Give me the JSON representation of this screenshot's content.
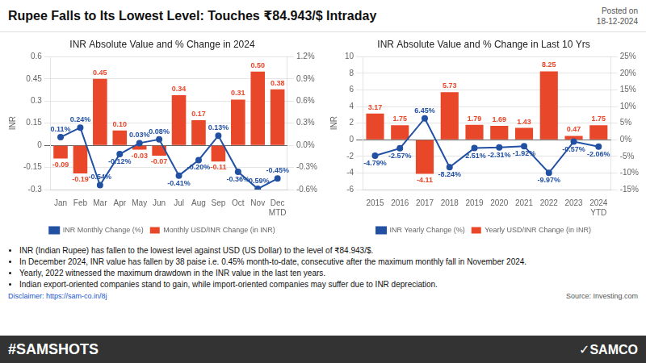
{
  "title": "Rupee Falls to Its Lowest Level: Touches ₹84.943/$ Intraday",
  "subtitle": "Posted on\n18-12-2024",
  "annotations": [
    "INR (Indian Rupee) has fallen to the lowest level against USD (US Dollar) to the level of ₹84.943/$.",
    "In December 2024, INR value has fallen by 38 paise i.e. 0.45% month-to-date, consecutive after the maximum monthly fall in November 2024.",
    "Yearly, 2022 witnessed the maximum drawdown in the INR value in the last ten years.",
    "Indian export-oriented companies stand to gain, while import-oriented companies may suffer due to INR depreciation.",
    "Disclaimer: https://sam-co.in/8j",
    "Source: Investing.com",
    "#SAMSHOTS",
    "✓SAMCO"
  ],
  "chart_data": [
    {
      "type": "bar",
      "title": "INR Absolute Value and % Change in 2024",
      "categories": [
        "Jan",
        "Feb",
        "Mar",
        "Apr",
        "May",
        "Jun",
        "Jul",
        "Aug",
        "Sep",
        "Oct",
        "Nov",
        "Dec\nMTD"
      ],
      "ylabel": "INR",
      "ylim": [
        -0.3,
        0.6
      ],
      "yticks": [
        -0.3,
        -0.15,
        0,
        0.15,
        0.3,
        0.45,
        0.6
      ],
      "y2lim": [
        -0.6,
        1.2
      ],
      "y2ticks": [
        {
          "value": -0.6,
          "label": "-0.6%"
        },
        {
          "value": -0.3,
          "label": "-0.3%"
        },
        {
          "value": 0,
          "label": "0.0%"
        },
        {
          "value": 0.3,
          "label": "0.3%"
        },
        {
          "value": 0.6,
          "label": "0.6%"
        },
        {
          "value": 0.9,
          "label": "0.9%"
        },
        {
          "value": 1.2,
          "label": "1.2%"
        }
      ],
      "grid": true,
      "legend": "bottom",
      "data_labels": true,
      "series": [
        {
          "name": "Monthly USD/INR Change (in INR)",
          "type": "bar",
          "color": "#E8472A",
          "values": [
            -0.09,
            -0.19,
            0.45,
            0.1,
            -0.03,
            -0.07,
            0.34,
            0.17,
            -0.11,
            0.31,
            0.5,
            0.38
          ],
          "value_labels": [
            "-0.09",
            "-0.19",
            "0.45",
            "0.10",
            "-0.03",
            "-0.07",
            "0.34",
            "0.17",
            "-0.11",
            "0.31",
            "0.50",
            "0.38"
          ]
        },
        {
          "name": "INR Monthly Change (%)",
          "type": "line",
          "axis": "y2",
          "color": "#2251A3",
          "marker": "circle",
          "values": [
            0.11,
            0.24,
            -0.54,
            -0.12,
            0.03,
            0.08,
            -0.41,
            -0.2,
            0.13,
            -0.36,
            -0.59,
            -0.45
          ],
          "value_labels": [
            "0.11%",
            "0.24%",
            "-0.54%",
            "-0.12%",
            "0.03%",
            "0.08%",
            "-0.41%",
            "-0.20%",
            "0.13%",
            "-0.36%",
            "-0.59%",
            "-0.45%"
          ]
        }
      ]
    },
    {
      "type": "bar",
      "title": "INR Absolute Value and % Change in Last 10 Yrs",
      "categories": [
        "2015",
        "2016",
        "2017",
        "2018",
        "2019",
        "2020",
        "2021",
        "2022",
        "2023",
        "2024\nYTD"
      ],
      "ylabel": "INR",
      "ylim": [
        -6,
        10
      ],
      "yticks": [
        -6,
        -4,
        -2,
        0,
        2,
        4,
        6,
        8,
        10
      ],
      "y2lim": [
        -15,
        25
      ],
      "y2ticks": [
        {
          "value": -15,
          "label": "-15%"
        },
        {
          "value": -10,
          "label": "-10%"
        },
        {
          "value": -5,
          "label": "-5%"
        },
        {
          "value": 0,
          "label": "0%"
        },
        {
          "value": 5,
          "label": "5%"
        },
        {
          "value": 10,
          "label": "10%"
        },
        {
          "value": 15,
          "label": "15%"
        },
        {
          "value": 20,
          "label": "20%"
        },
        {
          "value": 25,
          "label": "25%"
        }
      ],
      "grid": true,
      "legend": "bottom",
      "data_labels": true,
      "series": [
        {
          "name": "Yearly USD/INR Change (in INR)",
          "type": "bar",
          "color": "#E8472A",
          "values": [
            3.17,
            1.75,
            -4.11,
            5.73,
            1.79,
            1.69,
            1.43,
            8.25,
            0.47,
            1.75
          ],
          "value_labels": [
            "3.17",
            "1.75",
            "-4.11",
            "5.73",
            "1.79",
            "1.69",
            "1.43",
            "8.25",
            "0.47",
            "1.75"
          ]
        },
        {
          "name": "INR Yearly Change (%)",
          "type": "line",
          "axis": "y2",
          "color": "#2251A3",
          "marker": "circle",
          "values": [
            -4.79,
            -2.57,
            6.45,
            -8.24,
            -2.51,
            -2.31,
            -1.92,
            -9.97,
            -0.57,
            -2.06
          ],
          "value_labels": [
            "-4.79%",
            "-2.57%",
            "6.45%",
            "-8.24%",
            "-2.51%",
            "-2.31%",
            "-1.92%",
            "-9.97%",
            "-0.57%",
            "-2.06%"
          ]
        }
      ]
    }
  ]
}
